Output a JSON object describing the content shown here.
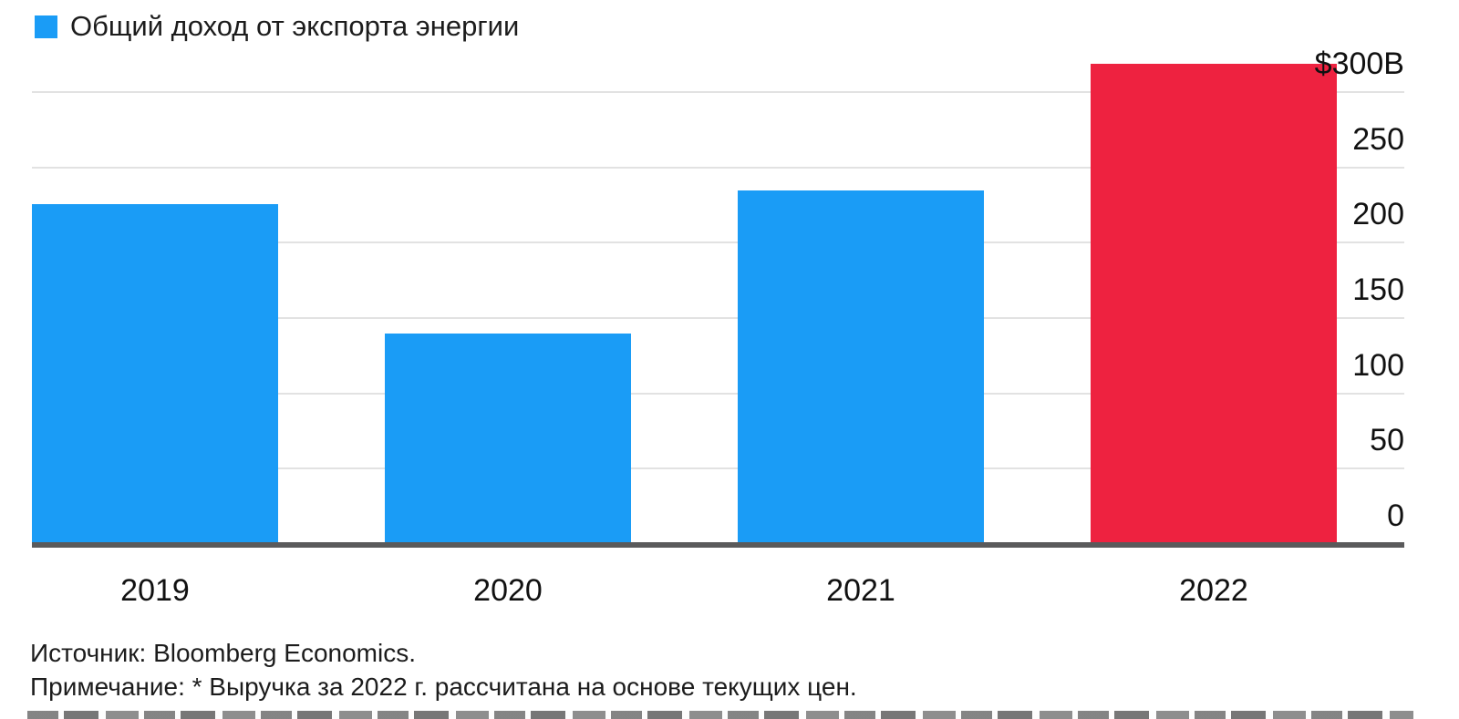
{
  "legend": {
    "label": "Общий доход от экспорта энергии"
  },
  "chart_data": {
    "type": "bar",
    "title": "",
    "legend_entries": [
      "Общий доход от экспорта энергии"
    ],
    "categories": [
      "2019",
      "2020",
      "2021",
      "2022"
    ],
    "values": [
      228,
      142,
      237,
      321
    ],
    "bar_colors": [
      "#1a9cf6",
      "#1a9cf6",
      "#1a9cf6",
      "#ee2240"
    ],
    "y_ticks": [
      {
        "value": 300,
        "label": "$300B"
      },
      {
        "value": 250,
        "label": "250"
      },
      {
        "value": 200,
        "label": "200"
      },
      {
        "value": 150,
        "label": "150"
      },
      {
        "value": 100,
        "label": "100"
      },
      {
        "value": 50,
        "label": "50"
      },
      {
        "value": 0,
        "label": "0"
      }
    ],
    "ylim": [
      0,
      321
    ],
    "grid": "horizontal",
    "y_axis_side": "right",
    "xlabel": "",
    "ylabel": ""
  },
  "footer": {
    "source": "Источник: Bloomberg Economics.",
    "note": "Примечание: * Выручка за 2022 г. рассчитана на основе текущих цен."
  },
  "colors": {
    "bar_blue": "#1a9cf6",
    "bar_red": "#ee2240",
    "gridline": "#e2e2e2",
    "axis_line": "#5a5a5b",
    "text": "#1a1a1a",
    "background": "#ffffff"
  }
}
